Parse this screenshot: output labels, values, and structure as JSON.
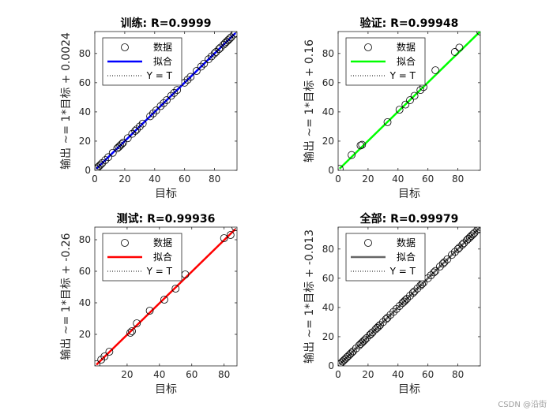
{
  "chart_data": [
    {
      "type": "scatter",
      "title": "训练: R=0.9999",
      "xlabel": "目标",
      "ylabel": "输出 ~= 1*目标 + 0.0024",
      "xlim": [
        0,
        95
      ],
      "ylim": [
        0,
        95
      ],
      "xticks": [
        0,
        20,
        40,
        60,
        80
      ],
      "yticks": [
        0,
        20,
        40,
        60,
        80
      ],
      "fit_color": "#0000ff",
      "fit": {
        "slope": 1,
        "intercept": 0.0024
      },
      "legend": [
        "数据",
        "拟合",
        "Y = T"
      ],
      "legend_loc": "top-left",
      "points": [
        [
          1,
          1
        ],
        [
          2,
          2
        ],
        [
          3,
          3
        ],
        [
          4,
          4
        ],
        [
          5,
          5
        ],
        [
          7,
          7
        ],
        [
          9,
          9
        ],
        [
          12,
          12
        ],
        [
          15,
          15
        ],
        [
          16,
          16
        ],
        [
          17,
          17
        ],
        [
          18,
          18
        ],
        [
          19,
          19
        ],
        [
          22,
          22
        ],
        [
          25,
          25
        ],
        [
          27,
          27
        ],
        [
          28,
          28
        ],
        [
          30,
          30
        ],
        [
          32,
          32
        ],
        [
          37,
          37
        ],
        [
          39,
          39
        ],
        [
          41,
          41
        ],
        [
          44,
          44
        ],
        [
          46,
          46
        ],
        [
          48,
          48
        ],
        [
          51,
          51
        ],
        [
          53,
          53
        ],
        [
          55,
          55
        ],
        [
          60,
          60
        ],
        [
          62,
          62
        ],
        [
          64,
          64
        ],
        [
          68,
          68
        ],
        [
          71,
          71
        ],
        [
          73,
          73
        ],
        [
          76,
          76
        ],
        [
          78,
          78
        ],
        [
          80,
          80
        ],
        [
          81,
          81
        ],
        [
          83,
          83
        ],
        [
          84,
          84
        ],
        [
          86,
          86
        ],
        [
          87,
          87
        ],
        [
          88,
          88
        ],
        [
          89,
          89
        ],
        [
          90,
          90
        ],
        [
          91,
          91
        ],
        [
          93,
          93
        ],
        [
          94,
          94
        ]
      ]
    },
    {
      "type": "scatter",
      "title": "验证: R=0.99948",
      "xlabel": "目标",
      "ylabel": "输出 ~= 1*目标 + 0.16",
      "xlim": [
        0,
        95
      ],
      "ylim": [
        0,
        95
      ],
      "xticks": [
        0,
        20,
        40,
        60,
        80
      ],
      "yticks": [
        0,
        20,
        40,
        60,
        80
      ],
      "fit_color": "#00ff00",
      "fit": {
        "slope": 1,
        "intercept": 0.16
      },
      "legend": [
        "数据",
        "拟合",
        "Y = T"
      ],
      "legend_loc": "top-left",
      "points": [
        [
          1,
          1
        ],
        [
          9,
          10.5
        ],
        [
          15,
          17
        ],
        [
          16,
          17.5
        ],
        [
          33,
          33
        ],
        [
          41,
          41.5
        ],
        [
          45,
          45
        ],
        [
          48,
          48
        ],
        [
          51,
          51
        ],
        [
          55,
          55
        ],
        [
          57,
          57
        ],
        [
          65,
          68.5
        ],
        [
          78,
          81
        ],
        [
          81,
          84
        ],
        [
          95,
          95
        ]
      ]
    },
    {
      "type": "scatter",
      "title": "测试: R=0.99936",
      "xlabel": "目标",
      "ylabel": "输出 ~= 1*目标 + -0.26",
      "xlim": [
        0,
        88
      ],
      "ylim": [
        0,
        88
      ],
      "xticks": [
        20,
        40,
        60,
        80
      ],
      "yticks": [
        20,
        40,
        60,
        80
      ],
      "fit_color": "#ff0000",
      "fit": {
        "slope": 1,
        "intercept": -0.26
      },
      "legend": [
        "数据",
        "拟合",
        "Y = T"
      ],
      "legend_loc": "top-left",
      "points": [
        [
          1,
          1
        ],
        [
          4,
          4
        ],
        [
          6,
          6
        ],
        [
          9,
          9
        ],
        [
          22,
          21
        ],
        [
          23,
          22
        ],
        [
          26,
          27
        ],
        [
          34,
          35
        ],
        [
          43,
          42
        ],
        [
          50,
          49
        ],
        [
          56,
          58
        ],
        [
          80,
          81
        ],
        [
          84,
          83
        ],
        [
          87,
          88
        ]
      ]
    },
    {
      "type": "scatter",
      "title": "全部: R=0.99979",
      "xlabel": "目标",
      "ylabel": "输出 ~= 1*目标 + -0.013",
      "xlim": [
        0,
        95
      ],
      "ylim": [
        0,
        95
      ],
      "xticks": [
        0,
        20,
        40,
        60,
        80
      ],
      "yticks": [
        0,
        20,
        40,
        60,
        80
      ],
      "fit_color": "#666666",
      "fit": {
        "slope": 1,
        "intercept": -0.013
      },
      "legend": [
        "数据",
        "拟合",
        "Y = T"
      ],
      "legend_loc": "top-left",
      "points": [
        [
          1,
          1
        ],
        [
          2,
          2
        ],
        [
          3,
          3
        ],
        [
          4,
          4
        ],
        [
          5,
          5
        ],
        [
          6,
          6
        ],
        [
          7,
          7
        ],
        [
          8,
          8
        ],
        [
          9,
          9
        ],
        [
          10,
          10
        ],
        [
          12,
          12
        ],
        [
          14,
          14
        ],
        [
          15,
          15
        ],
        [
          16,
          16
        ],
        [
          17,
          17
        ],
        [
          18,
          18
        ],
        [
          19,
          19
        ],
        [
          21,
          21
        ],
        [
          22,
          22
        ],
        [
          23,
          23
        ],
        [
          25,
          25
        ],
        [
          26,
          26
        ],
        [
          27,
          27
        ],
        [
          28,
          28
        ],
        [
          30,
          30
        ],
        [
          32,
          32
        ],
        [
          33,
          33
        ],
        [
          35,
          35
        ],
        [
          37,
          37
        ],
        [
          39,
          39
        ],
        [
          41,
          41
        ],
        [
          43,
          43
        ],
        [
          44,
          44
        ],
        [
          45,
          45
        ],
        [
          46,
          46
        ],
        [
          48,
          48
        ],
        [
          50,
          50
        ],
        [
          51,
          51
        ],
        [
          53,
          53
        ],
        [
          55,
          55
        ],
        [
          56,
          56
        ],
        [
          57,
          57
        ],
        [
          60,
          60
        ],
        [
          62,
          62
        ],
        [
          64,
          64
        ],
        [
          65,
          65
        ],
        [
          68,
          68
        ],
        [
          70,
          70
        ],
        [
          71,
          71
        ],
        [
          73,
          73
        ],
        [
          76,
          76
        ],
        [
          78,
          78
        ],
        [
          80,
          80
        ],
        [
          81,
          81
        ],
        [
          83,
          83
        ],
        [
          84,
          84
        ],
        [
          86,
          86
        ],
        [
          87,
          87
        ],
        [
          88,
          88
        ],
        [
          89,
          89
        ],
        [
          90,
          90
        ],
        [
          91,
          91
        ],
        [
          93,
          93
        ],
        [
          94,
          94
        ],
        [
          95,
          95
        ]
      ]
    }
  ],
  "watermark": "CSDN @沿街"
}
